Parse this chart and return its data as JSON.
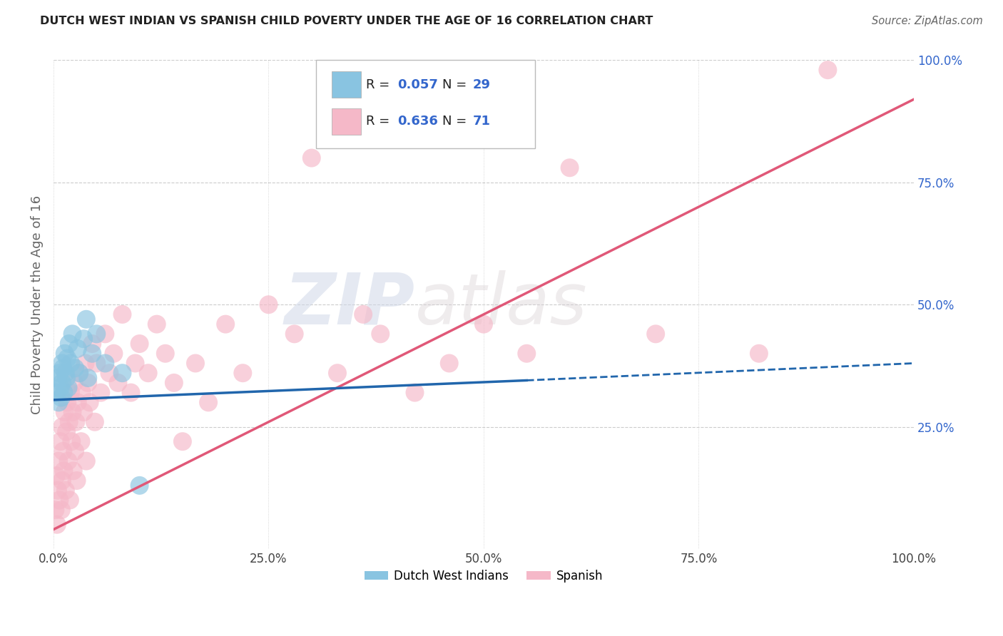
{
  "title": "DUTCH WEST INDIAN VS SPANISH CHILD POVERTY UNDER THE AGE OF 16 CORRELATION CHART",
  "source": "Source: ZipAtlas.com",
  "ylabel": "Child Poverty Under the Age of 16",
  "xlabel": "",
  "watermark_part1": "ZIP",
  "watermark_part2": "atlas",
  "xlim": [
    0.0,
    1.0
  ],
  "ylim": [
    0.0,
    1.0
  ],
  "xticks": [
    0.0,
    0.25,
    0.5,
    0.75,
    1.0
  ],
  "yticks": [
    0.0,
    0.25,
    0.5,
    0.75,
    1.0
  ],
  "xticklabels": [
    "0.0%",
    "25.0%",
    "50.0%",
    "75.0%",
    "100.0%"
  ],
  "yticklabels_right": [
    "",
    "25.0%",
    "50.0%",
    "75.0%",
    "100.0%"
  ],
  "blue_color": "#89c4e1",
  "pink_color": "#f5b8c8",
  "blue_line_color": "#2166ac",
  "pink_line_color": "#e05878",
  "legend_R_blue": "R = 0.057",
  "legend_N_blue": "N = 29",
  "legend_R_pink": "R = 0.636",
  "legend_N_pink": "N = 71",
  "legend_label_blue": "Dutch West Indians",
  "legend_label_pink": "Spanish",
  "title_color": "#222222",
  "source_color": "#666666",
  "R_color": "#3366cc",
  "blue_scatter": {
    "x": [
      0.003,
      0.005,
      0.006,
      0.007,
      0.008,
      0.009,
      0.01,
      0.01,
      0.011,
      0.012,
      0.013,
      0.014,
      0.015,
      0.016,
      0.017,
      0.018,
      0.02,
      0.022,
      0.025,
      0.028,
      0.03,
      0.035,
      0.038,
      0.04,
      0.045,
      0.05,
      0.06,
      0.08,
      0.1
    ],
    "y": [
      0.32,
      0.35,
      0.3,
      0.36,
      0.33,
      0.31,
      0.38,
      0.34,
      0.37,
      0.32,
      0.4,
      0.36,
      0.35,
      0.39,
      0.33,
      0.42,
      0.38,
      0.44,
      0.37,
      0.41,
      0.36,
      0.43,
      0.47,
      0.35,
      0.4,
      0.44,
      0.38,
      0.36,
      0.13
    ]
  },
  "pink_scatter": {
    "x": [
      0.002,
      0.003,
      0.004,
      0.005,
      0.006,
      0.007,
      0.008,
      0.009,
      0.01,
      0.01,
      0.011,
      0.012,
      0.013,
      0.014,
      0.015,
      0.016,
      0.017,
      0.018,
      0.019,
      0.02,
      0.021,
      0.022,
      0.023,
      0.024,
      0.025,
      0.026,
      0.027,
      0.028,
      0.03,
      0.032,
      0.033,
      0.035,
      0.037,
      0.038,
      0.04,
      0.042,
      0.045,
      0.048,
      0.05,
      0.055,
      0.06,
      0.065,
      0.07,
      0.075,
      0.08,
      0.09,
      0.095,
      0.1,
      0.11,
      0.12,
      0.13,
      0.14,
      0.15,
      0.165,
      0.18,
      0.2,
      0.22,
      0.25,
      0.28,
      0.3,
      0.33,
      0.36,
      0.38,
      0.42,
      0.46,
      0.5,
      0.55,
      0.6,
      0.7,
      0.82,
      0.9
    ],
    "y": [
      0.08,
      0.15,
      0.05,
      0.12,
      0.18,
      0.1,
      0.22,
      0.08,
      0.25,
      0.14,
      0.2,
      0.16,
      0.28,
      0.12,
      0.24,
      0.3,
      0.18,
      0.26,
      0.1,
      0.32,
      0.22,
      0.28,
      0.16,
      0.34,
      0.2,
      0.26,
      0.14,
      0.3,
      0.36,
      0.22,
      0.32,
      0.28,
      0.38,
      0.18,
      0.34,
      0.3,
      0.42,
      0.26,
      0.38,
      0.32,
      0.44,
      0.36,
      0.4,
      0.34,
      0.48,
      0.32,
      0.38,
      0.42,
      0.36,
      0.46,
      0.4,
      0.34,
      0.22,
      0.38,
      0.3,
      0.46,
      0.36,
      0.5,
      0.44,
      0.8,
      0.36,
      0.48,
      0.44,
      0.32,
      0.38,
      0.46,
      0.4,
      0.78,
      0.44,
      0.4,
      0.98
    ]
  },
  "blue_regression": {
    "x_start": 0.0,
    "x_end": 0.55,
    "y_start": 0.305,
    "y_end": 0.345,
    "x_dash_start": 0.55,
    "x_dash_end": 1.0,
    "y_dash_start": 0.345,
    "y_dash_end": 0.38
  },
  "pink_regression": {
    "x_start": 0.0,
    "x_end": 1.0,
    "y_start": 0.04,
    "y_end": 0.92
  },
  "background_color": "#ffffff",
  "grid_color": "#cccccc",
  "figsize": [
    14.06,
    8.92
  ],
  "dpi": 100
}
